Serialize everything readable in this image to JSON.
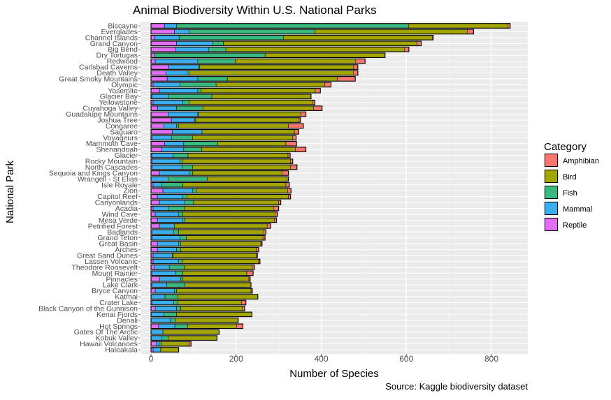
{
  "chart_data": {
    "type": "bar",
    "orientation": "horizontal",
    "stacked": true,
    "title": "Animal Biodiversity Within U.S. National Parks",
    "xlabel": "Number of Species",
    "ylabel": "National Park",
    "caption": "Source: Kaggle biodiversity dataset",
    "xlim": [
      -20,
      880
    ],
    "xticks": [
      0,
      200,
      400,
      600,
      800
    ],
    "grid": true,
    "legend": {
      "title": "Category",
      "placement": "right",
      "entries": [
        {
          "name": "Amphibian",
          "color": "#F8766D"
        },
        {
          "name": "Bird",
          "color": "#A3A500"
        },
        {
          "name": "Fish",
          "color": "#39B87F"
        },
        {
          "name": "Mammal",
          "color": "#3BAEEF"
        },
        {
          "name": "Reptile",
          "color": "#E36EF6"
        }
      ]
    },
    "stack_order": [
      "Reptile",
      "Mammal",
      "Fish",
      "Bird",
      "Amphibian"
    ],
    "categories": [
      "Biscayne",
      "Everglades",
      "Channel Islands",
      "Grand Canyon",
      "Big Bend",
      "Dry Tortugas",
      "Redwood",
      "Carlsbad Caverns",
      "Death Valley",
      "Great Smoky Mountains",
      "Olympic",
      "Yosemite",
      "Glacier Bay",
      "Yellowstone",
      "Cuyahoga Valley",
      "Guadalupe Mountains",
      "Joshua Tree",
      "Congaree",
      "Saguaro",
      "Voyageurs",
      "Mammoth Cave",
      "Shenandoah",
      "Glacier",
      "Rocky Mountain",
      "North Cascades",
      "Sequoia and Kings Canyon",
      "Wrangell - St Elias",
      "Isle Royale",
      "Zion",
      "Capitol Reef",
      "Canyonlands",
      "Acadia",
      "Wind Cave",
      "Mesa Verde",
      "Petrified Forest",
      "Badlands",
      "Grand Teton",
      "Great Basin",
      "Arches",
      "Great Sand Dunes",
      "Lassen Volcanic",
      "Theodore Roosevelt",
      "Mount Rainier",
      "Pinnacles",
      "Lake Clark",
      "Bryce Canyon",
      "Katmai",
      "Crater Lake",
      "Black Canyon of the Gunnison",
      "Kenai Fjords",
      "Denali",
      "Hot Springs",
      "Gates Of The Arctic",
      "Kobuk Valley",
      "Hawaii Volcanoes",
      "Haleakala"
    ],
    "series": [
      {
        "name": "Reptile",
        "values": [
          32,
          55,
          8,
          60,
          58,
          8,
          10,
          42,
          35,
          38,
          5,
          20,
          2,
          5,
          15,
          40,
          48,
          30,
          50,
          3,
          32,
          25,
          2,
          3,
          3,
          20,
          0,
          5,
          28,
          15,
          20,
          5,
          10,
          15,
          20,
          3,
          3,
          15,
          15,
          5,
          5,
          8,
          3,
          20,
          2,
          10,
          0,
          3,
          10,
          0,
          0,
          18,
          0,
          0,
          12,
          5
        ]
      },
      {
        "name": "Mammal",
        "values": [
          28,
          35,
          58,
          85,
          78,
          0,
          100,
          70,
          50,
          72,
          63,
          90,
          38,
          70,
          45,
          70,
          55,
          30,
          70,
          45,
          45,
          52,
          50,
          65,
          70,
          70,
          40,
          20,
          70,
          60,
          60,
          35,
          55,
          60,
          35,
          50,
          65,
          50,
          45,
          45,
          60,
          35,
          55,
          50,
          35,
          45,
          33,
          50,
          50,
          30,
          45,
          38,
          28,
          25,
          7,
          18
        ]
      },
      {
        "name": "Fish",
        "values": [
          545,
          295,
          245,
          25,
          40,
          260,
          88,
          2,
          5,
          70,
          85,
          8,
          103,
          15,
          62,
          2,
          2,
          5,
          0,
          50,
          80,
          42,
          35,
          5,
          25,
          8,
          92,
          50,
          8,
          10,
          20,
          38,
          10,
          5,
          0,
          12,
          15,
          5,
          10,
          2,
          8,
          35,
          17,
          5,
          43,
          5,
          30,
          10,
          10,
          30,
          12,
          30,
          0,
          15,
          5,
          0
        ]
      },
      {
        "name": "Bird",
        "values": [
          234,
          358,
          350,
          455,
          420,
          282,
          283,
          362,
          386,
          258,
          255,
          268,
          233,
          290,
          260,
          240,
          243,
          258,
          217,
          235,
          160,
          220,
          235,
          255,
          230,
          210,
          188,
          242,
          215,
          238,
          200,
          210,
          217,
          210,
          218,
          200,
          180,
          188,
          178,
          195,
          180,
          160,
          150,
          155,
          155,
          175,
          188,
          150,
          145,
          177,
          148,
          115,
          132,
          115,
          65,
          42
        ]
      },
      {
        "name": "Amphibian",
        "values": [
          5,
          15,
          2,
          10,
          10,
          0,
          22,
          10,
          10,
          42,
          15,
          12,
          0,
          5,
          20,
          12,
          3,
          35,
          10,
          8,
          25,
          25,
          5,
          5,
          15,
          15,
          3,
          8,
          8,
          5,
          5,
          12,
          5,
          5,
          8,
          5,
          5,
          3,
          5,
          3,
          3,
          5,
          15,
          3,
          0,
          3,
          0,
          10,
          5,
          0,
          0,
          15,
          0,
          0,
          5,
          0
        ]
      }
    ]
  }
}
